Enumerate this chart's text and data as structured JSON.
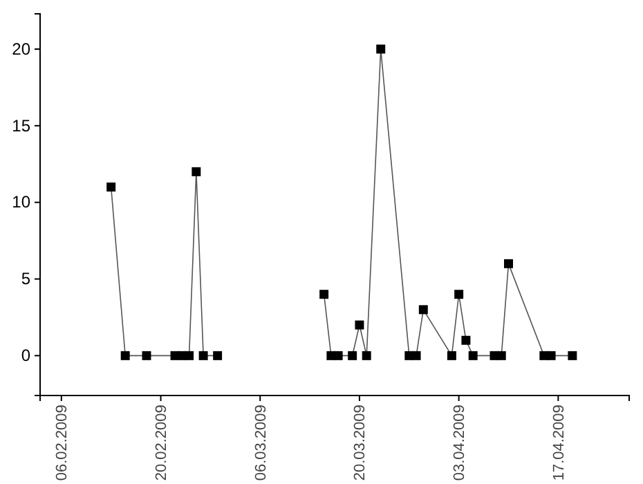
{
  "chart_data": {
    "type": "line",
    "marker": "square",
    "line_style": "solid",
    "grid": false,
    "x": [
      "2009-02-13",
      "2009-02-15",
      "2009-02-18",
      "2009-02-22",
      "2009-02-23",
      "2009-02-24",
      "2009-02-25",
      "2009-02-26",
      "2009-02-28",
      "2009-03-08",
      "2009-03-15",
      "2009-03-16",
      "2009-03-17",
      "2009-03-19",
      "2009-03-20",
      "2009-03-21",
      "2009-03-23",
      "2009-03-27",
      "2009-03-28",
      "2009-03-29",
      "2009-04-02",
      "2009-04-03",
      "2009-04-04",
      "2009-04-05",
      "2009-04-08",
      "2009-04-09",
      "2009-04-10",
      "2009-04-15",
      "2009-04-16",
      "2009-04-19"
    ],
    "series": [
      {
        "color": "#000000",
        "values": [
          11,
          0,
          0,
          0,
          0,
          0,
          12,
          0,
          0,
          null,
          4,
          0,
          0,
          0,
          2,
          0,
          20,
          0,
          0,
          3,
          0,
          4,
          1,
          0,
          0,
          0,
          6,
          0,
          0,
          0
        ]
      }
    ],
    "xlim": [
      "2009-02-03",
      "2009-04-27"
    ],
    "xticks": [
      {
        "value": "2009-02-06",
        "label": "06.02.2009"
      },
      {
        "value": "2009-02-20",
        "label": "20.02.2009"
      },
      {
        "value": "2009-03-06",
        "label": "06.03.2009"
      },
      {
        "value": "2009-03-20",
        "label": "20.03.2009"
      },
      {
        "value": "2009-04-03",
        "label": "03.04.2009"
      },
      {
        "value": "2009-04-17",
        "label": "17.04.2009"
      }
    ],
    "ylim": [
      -2.6,
      22.3
    ],
    "yticks": [
      0,
      5,
      10,
      15,
      20
    ]
  }
}
